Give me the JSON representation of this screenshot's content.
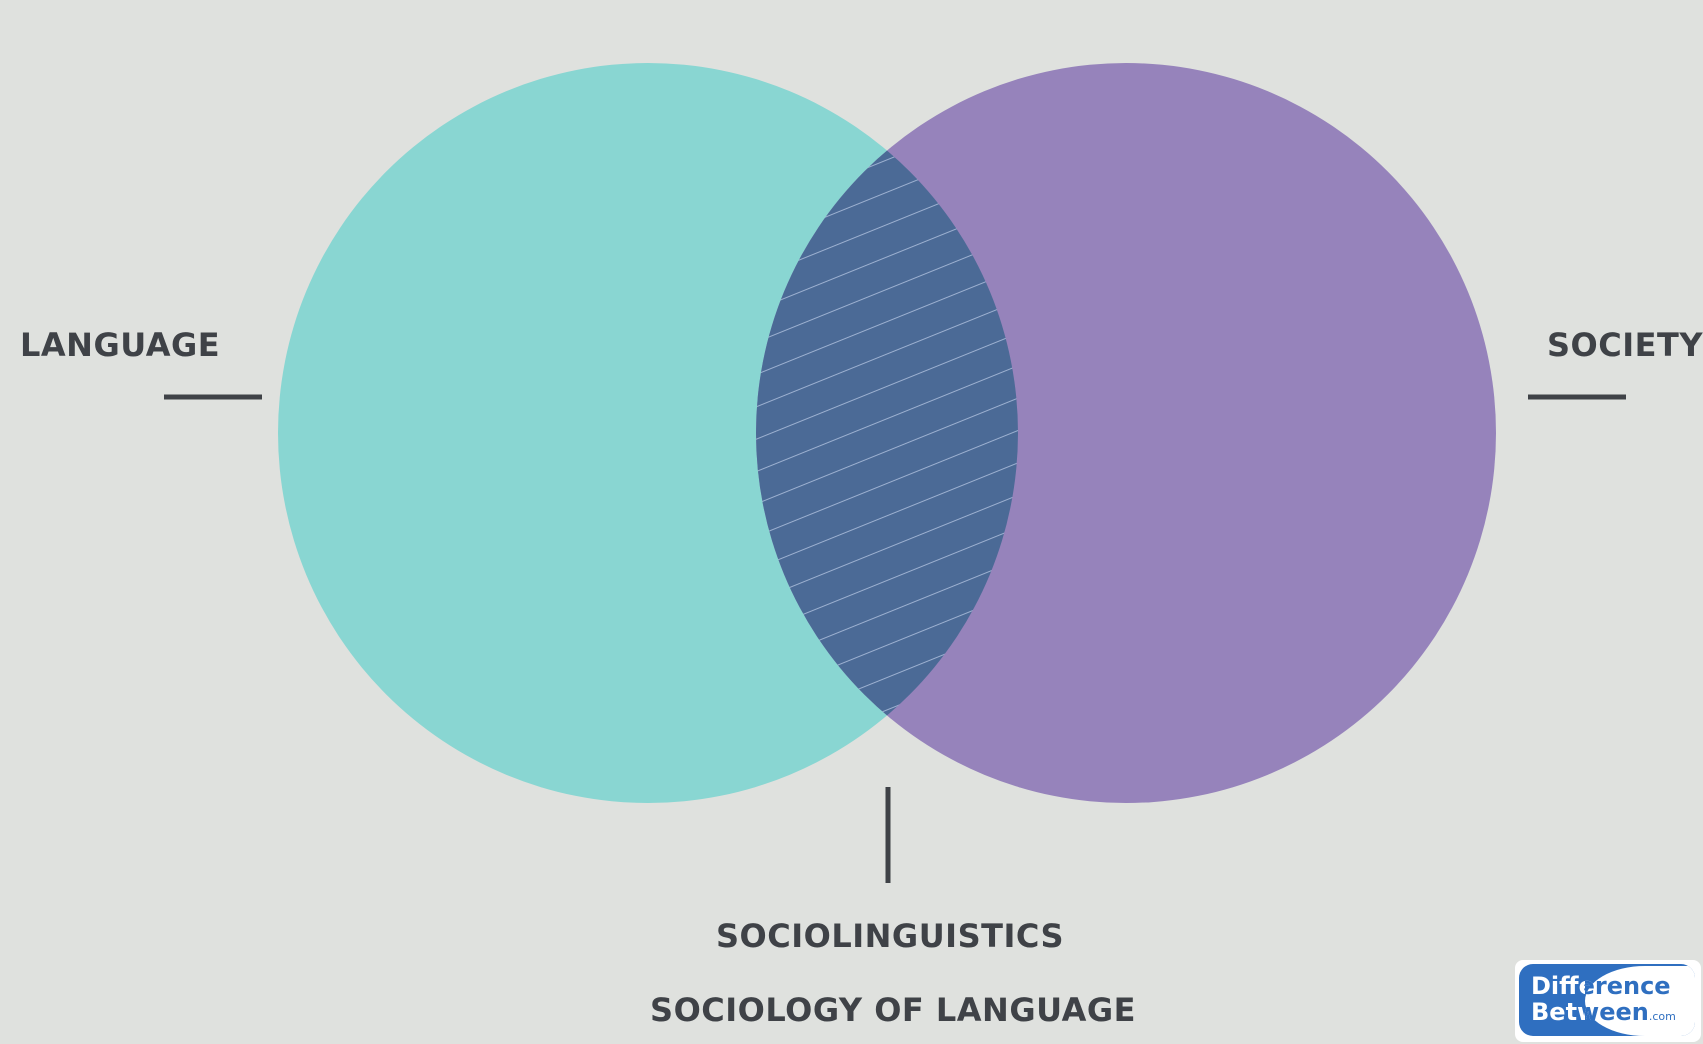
{
  "diagram": {
    "sets": [
      {
        "name": "LANGUAGE",
        "color": "#89d6d2"
      },
      {
        "name": "SOCIETY",
        "color": "#9683bb"
      }
    ],
    "intersection": {
      "labels": [
        "SOCIOLINGUISTICS",
        "SOCIOLOGY OF LANGUAGE"
      ],
      "color": "#4b6a96",
      "pattern": "diagonal-hatch"
    }
  },
  "watermark": {
    "line1": "Difference",
    "line2": "Between",
    "suffix": ".com"
  }
}
